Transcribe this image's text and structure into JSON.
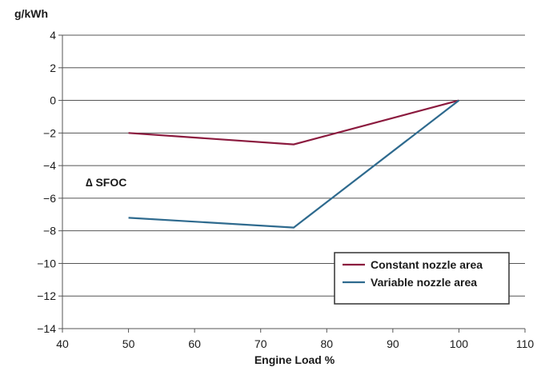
{
  "chart_data": {
    "type": "line",
    "ylabel_unit": "g/kWh",
    "xlabel": "Engine Load %",
    "annotation": "∆ SFOC",
    "xlim": [
      40,
      110
    ],
    "ylim": [
      -14,
      4
    ],
    "x_ticks": [
      40,
      50,
      60,
      70,
      80,
      90,
      100,
      110
    ],
    "y_ticks": [
      4,
      2,
      0,
      -2,
      -4,
      -6,
      -8,
      -10,
      -12,
      -14
    ],
    "grid": "horizontal",
    "legend_position": "bottom-right",
    "series": [
      {
        "name": "Constant nozzle area",
        "color": "#8b1a3e",
        "x": [
          50,
          75,
          100
        ],
        "y": [
          -2.0,
          -2.7,
          0.0
        ]
      },
      {
        "name": "Variable nozzle area",
        "color": "#2e6a8e",
        "x": [
          50,
          75,
          100
        ],
        "y": [
          -7.2,
          -7.8,
          0.0
        ]
      }
    ]
  }
}
